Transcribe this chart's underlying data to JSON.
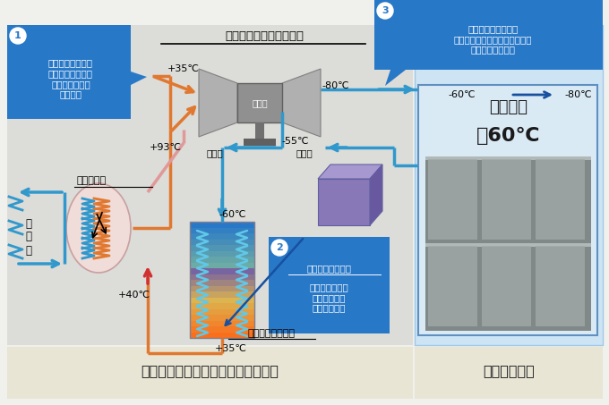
{
  "bg_color": "#f0f0ec",
  "main_panel_bg": "#e0e0dc",
  "right_panel_bg": "#cce4f4",
  "bottom_bg": "#e8e5d5",
  "callout1_bg": "#2878c8",
  "callout1_text": "膨張機で発生する\n動力を圧縮機動力\nとして使用し、\n高効率化",
  "callout3_bg": "#2878c8",
  "callout3_text": "系内低温部の水分、\n霜を定期的に自動デフロスト、\n乾燥機能（特許）",
  "callout2_bg": "#2878c8",
  "callout2_text": "フロストトラップ\n冷蔵庫内からの\n霜を除去する\n（ノウハウ）",
  "callout2_underline": "フロストトラップ",
  "turbo_label": "ターボ型圧縮機・膨張機",
  "compressor_label": "圧縮機",
  "expander_label": "膨張機",
  "motor_label": "モータ",
  "cooler_label": "一次冷却器",
  "cooling_water_label": "冷\n却\n水",
  "heat_exchanger_label": "冷熱回収熱交換器",
  "t35_top": "+35℃",
  "tm80_top": "-80℃",
  "t93": "+93℃",
  "tm55": "-55℃",
  "tm60_mid": "-60℃",
  "t40": "+40℃",
  "t35_bot": "+35℃",
  "tm60_right": "-60℃",
  "tm80_right": "-80℃",
  "chamber_title1": "庫内温度",
  "chamber_title2": "－60℃",
  "bottom_left_label": "空気冷凍システム『パスカルエア』",
  "bottom_right_label": "超低温冷蔵庫",
  "col_orange": "#e07830",
  "col_blue": "#3098cc",
  "col_pink": "#e87898",
  "col_dark_blue": "#1850a0"
}
